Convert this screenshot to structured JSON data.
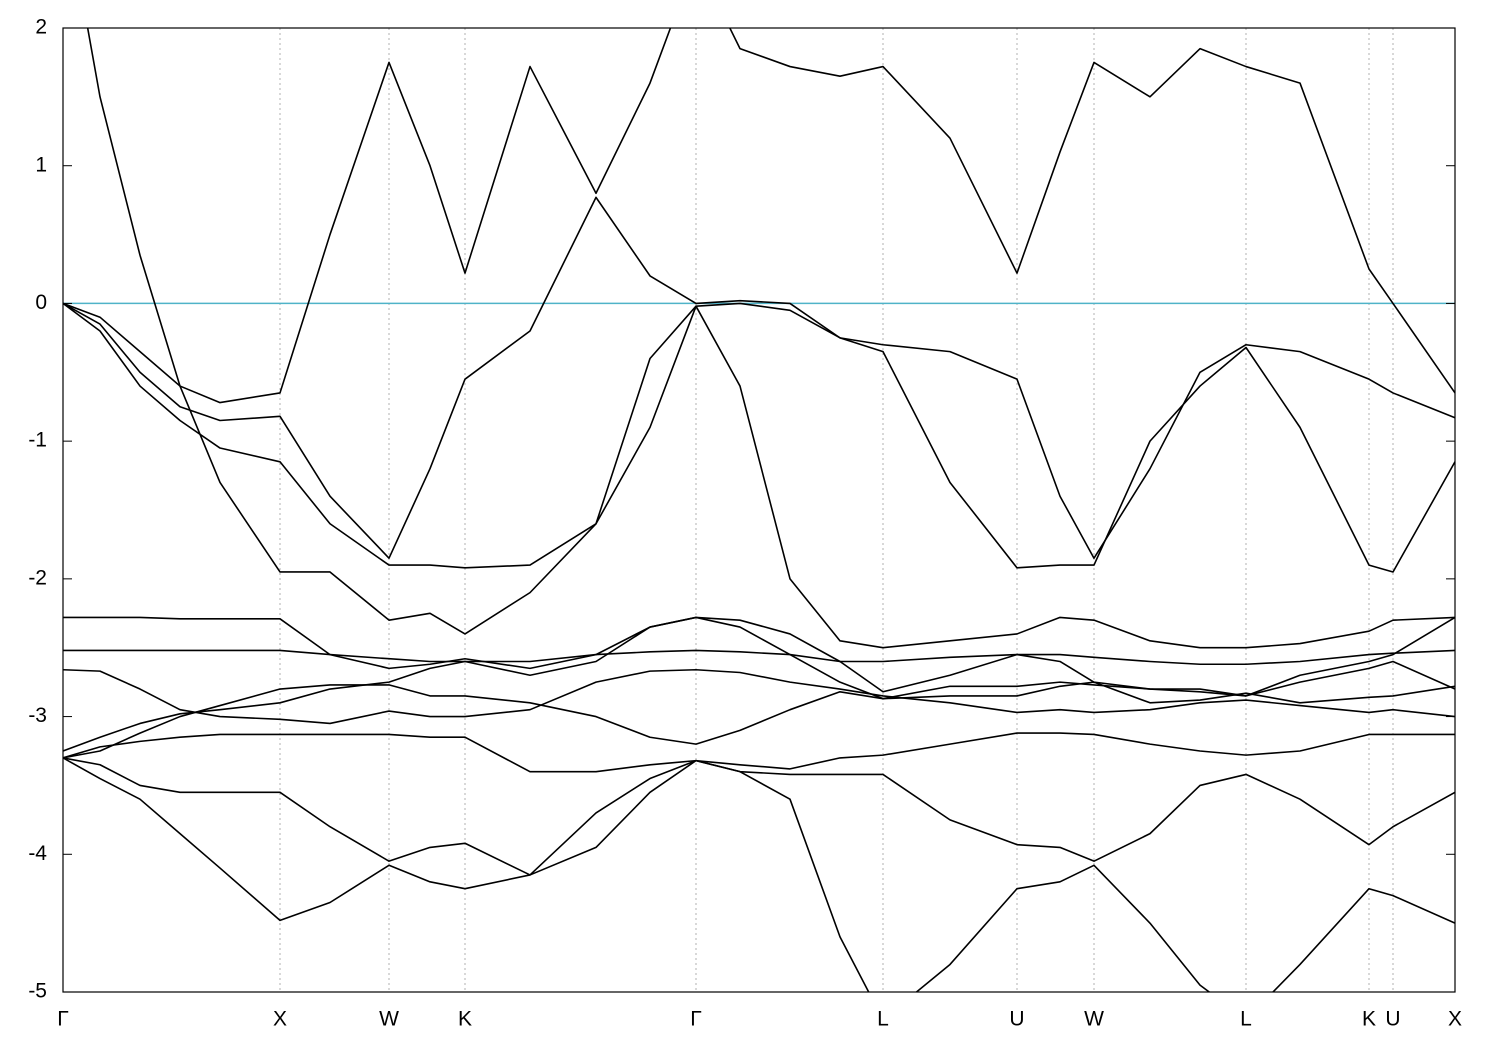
{
  "chart_data": {
    "type": "line",
    "x": [
      0,
      0.37,
      0.77,
      1.17,
      1.57,
      2.17,
      2.67,
      3.26,
      3.67,
      4.02,
      4.67,
      5.33,
      5.87,
      6.33,
      6.77,
      7.27,
      7.77,
      8.2,
      8.87,
      9.54,
      9.97,
      10.31,
      10.87,
      11.37,
      11.83,
      12.37,
      13.06,
      13.3,
      13.92
    ],
    "xlim": [
      0,
      13.92
    ],
    "xticks": [
      {
        "value": 0,
        "label": "Γ"
      },
      {
        "value": 2.17,
        "label": "X"
      },
      {
        "value": 3.26,
        "label": "W"
      },
      {
        "value": 4.02,
        "label": "K"
      },
      {
        "value": 6.33,
        "label": "Γ"
      },
      {
        "value": 8.2,
        "label": "L"
      },
      {
        "value": 9.54,
        "label": "U"
      },
      {
        "value": 10.31,
        "label": "W"
      },
      {
        "value": 11.83,
        "label": "L"
      },
      {
        "value": 13.06,
        "label": "K"
      },
      {
        "value": 13.3,
        "label": "U"
      },
      {
        "value": 13.92,
        "label": "X"
      }
    ],
    "ylim": [
      -5,
      2
    ],
    "yticks": [
      2,
      1,
      0,
      -1,
      -2,
      -3,
      -4,
      -5
    ],
    "grid": "x",
    "hline": {
      "value": 0,
      "color": "#4fb3c8"
    },
    "series": [
      {
        "color": "#000000",
        "values": [
          3.0,
          1.5,
          0.35,
          -0.6,
          -1.3,
          -1.95,
          -1.95,
          -2.3,
          -2.25,
          -2.4,
          -2.1,
          -1.6,
          -0.9,
          -0.02,
          -0.6,
          -2.0,
          -2.45,
          -2.5,
          -2.45,
          -2.4,
          -2.28,
          -2.3,
          -2.45,
          -2.5,
          -2.5,
          -2.47,
          -2.38,
          -2.3,
          -2.28
        ]
      },
      {
        "color": "#000000",
        "values": [
          0,
          -0.1,
          -0.35,
          -0.6,
          -0.72,
          -0.65,
          0.5,
          1.75,
          1.0,
          0.22,
          1.72,
          0.8,
          1.6,
          2.5,
          1.85,
          1.72,
          1.65,
          1.72,
          1.2,
          0.22,
          1.1,
          1.75,
          1.5,
          1.85,
          1.72,
          1.6,
          0.25,
          0,
          -0.65
        ]
      },
      {
        "color": "#000000",
        "values": [
          0,
          -0.15,
          -0.5,
          -0.75,
          -0.85,
          -0.82,
          -1.4,
          -1.85,
          -1.2,
          -0.55,
          -0.2,
          0.77,
          0.2,
          0.0,
          0.02,
          0.0,
          -0.25,
          -0.3,
          -0.35,
          -0.55,
          -1.4,
          -1.85,
          -1.2,
          -0.5,
          -0.3,
          -0.35,
          -0.55,
          -0.65,
          -0.83
        ]
      },
      {
        "color": "#000000",
        "values": [
          0,
          -0.2,
          -0.6,
          -0.85,
          -1.05,
          -1.15,
          -1.6,
          -1.9,
          -1.9,
          -1.92,
          -1.9,
          -1.6,
          -0.4,
          -0.02,
          0.0,
          -0.05,
          -0.25,
          -0.35,
          -1.3,
          -1.92,
          -1.9,
          -1.9,
          -1.0,
          -0.6,
          -0.32,
          -0.9,
          -1.9,
          -1.95,
          -1.15
        ]
      },
      {
        "color": "#000000",
        "values": [
          -2.28,
          -2.28,
          -2.28,
          -2.29,
          -2.29,
          -2.29,
          -2.55,
          -2.65,
          -2.62,
          -2.58,
          -2.65,
          -2.55,
          -2.35,
          -2.28,
          -2.3,
          -2.4,
          -2.6,
          -2.82,
          -2.7,
          -2.55,
          -2.6,
          -2.75,
          -2.8,
          -2.82,
          -2.85,
          -2.7,
          -2.6,
          -2.55,
          -2.28
        ]
      },
      {
        "color": "#000000",
        "values": [
          -2.52,
          -2.52,
          -2.52,
          -2.52,
          -2.52,
          -2.52,
          -2.55,
          -2.58,
          -2.6,
          -2.6,
          -2.6,
          -2.55,
          -2.53,
          -2.52,
          -2.53,
          -2.55,
          -2.6,
          -2.6,
          -2.57,
          -2.55,
          -2.55,
          -2.57,
          -2.6,
          -2.62,
          -2.62,
          -2.6,
          -2.55,
          -2.54,
          -2.52
        ]
      },
      {
        "color": "#000000",
        "values": [
          -2.66,
          -2.67,
          -2.8,
          -2.95,
          -3.0,
          -3.02,
          -3.05,
          -2.96,
          -3.0,
          -3.0,
          -2.95,
          -2.75,
          -2.67,
          -2.66,
          -2.68,
          -2.75,
          -2.8,
          -2.85,
          -2.9,
          -2.97,
          -2.95,
          -2.97,
          -2.95,
          -2.9,
          -2.88,
          -2.92,
          -2.97,
          -2.95,
          -3.0
        ]
      },
      {
        "color": "#000000",
        "values": [
          -3.25,
          -3.15,
          -3.05,
          -2.98,
          -2.95,
          -2.9,
          -2.8,
          -2.75,
          -2.65,
          -2.6,
          -2.7,
          -2.6,
          -2.35,
          -2.28,
          -2.35,
          -2.55,
          -2.75,
          -2.87,
          -2.85,
          -2.85,
          -2.78,
          -2.75,
          -2.9,
          -2.88,
          -2.83,
          -2.9,
          -2.86,
          -2.85,
          -2.78
        ]
      },
      {
        "color": "#000000",
        "values": [
          -3.3,
          -3.25,
          -3.12,
          -3.0,
          -2.92,
          -2.8,
          -2.77,
          -2.77,
          -2.85,
          -2.85,
          -2.9,
          -3.0,
          -3.15,
          -3.2,
          -3.1,
          -2.95,
          -2.82,
          -2.87,
          -2.78,
          -2.78,
          -2.75,
          -2.77,
          -2.8,
          -2.8,
          -2.85,
          -2.75,
          -2.65,
          -2.6,
          -2.8
        ]
      },
      {
        "color": "#000000",
        "values": [
          -3.3,
          -3.22,
          -3.18,
          -3.15,
          -3.13,
          -3.13,
          -3.13,
          -3.13,
          -3.15,
          -3.15,
          -3.4,
          -3.4,
          -3.35,
          -3.32,
          -3.35,
          -3.38,
          -3.3,
          -3.28,
          -3.2,
          -3.12,
          -3.12,
          -3.13,
          -3.2,
          -3.25,
          -3.28,
          -3.25,
          -3.13,
          -3.13,
          -3.13
        ]
      },
      {
        "color": "#000000",
        "values": [
          -3.3,
          -3.45,
          -3.6,
          -3.85,
          -4.1,
          -4.48,
          -4.35,
          -4.08,
          -4.2,
          -4.25,
          -4.15,
          -3.7,
          -3.45,
          -3.32,
          -3.4,
          -3.6,
          -4.6,
          -5.2,
          -4.8,
          -4.25,
          -4.2,
          -4.08,
          -4.5,
          -4.95,
          -5.2,
          -4.8,
          -4.25,
          -4.3,
          -4.5
        ]
      },
      {
        "color": "#000000",
        "values": [
          -3.3,
          -3.35,
          -3.5,
          -3.55,
          -3.55,
          -3.55,
          -3.8,
          -4.05,
          -3.95,
          -3.92,
          -4.15,
          -3.95,
          -3.55,
          -3.32,
          -3.4,
          -3.42,
          -3.42,
          -3.42,
          -3.75,
          -3.93,
          -3.95,
          -4.05,
          -3.85,
          -3.5,
          -3.42,
          -3.6,
          -3.93,
          -3.8,
          -3.55
        ]
      }
    ]
  }
}
